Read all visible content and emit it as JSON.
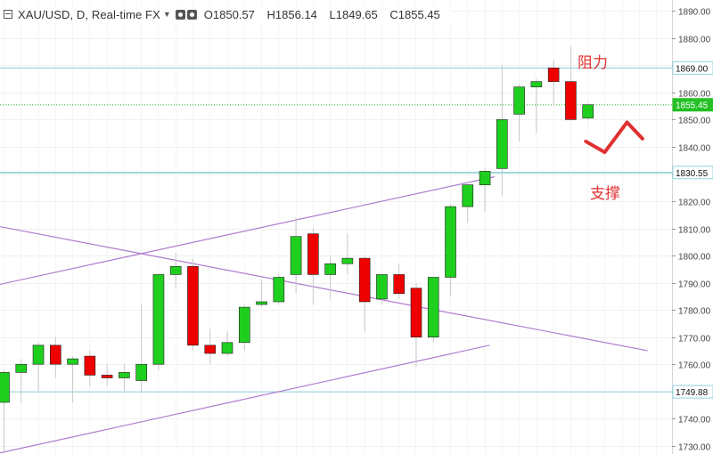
{
  "header": {
    "title": "XAU/USD, D, Real-time FX",
    "open": "O1850.57",
    "high": "H1856.14",
    "low": "L1849.65",
    "close": "C1855.45"
  },
  "annotations": {
    "resistance": "阻力",
    "support": "支撑"
  },
  "price_labels": {
    "resistance": "1869.00",
    "current": "1855.45",
    "support": "1830.55",
    "lower": "1749.88"
  },
  "colors": {
    "up": "#1ecf1e",
    "down": "#ee0000",
    "hline": "#8fd3dc",
    "trend": "#b07ad0",
    "annotation": "#e03030",
    "current": "#22c022"
  },
  "chart_data": {
    "type": "candlestick",
    "ylim": [
      1727,
      1894
    ],
    "y_ticks": [
      1890,
      1880,
      1870,
      1860,
      1850,
      1840,
      1830,
      1820,
      1810,
      1800,
      1790,
      1780,
      1770,
      1760,
      1750,
      1740,
      1730
    ],
    "candles": [
      {
        "o": 1746,
        "h": 1758,
        "l": 1726,
        "c": 1757
      },
      {
        "o": 1757,
        "h": 1762,
        "l": 1746,
        "c": 1760
      },
      {
        "o": 1760,
        "h": 1768,
        "l": 1750,
        "c": 1767
      },
      {
        "o": 1767,
        "h": 1770,
        "l": 1755,
        "c": 1760
      },
      {
        "o": 1760,
        "h": 1763,
        "l": 1746,
        "c": 1762
      },
      {
        "o": 1763,
        "h": 1765,
        "l": 1752,
        "c": 1756
      },
      {
        "o": 1756,
        "h": 1760,
        "l": 1752,
        "c": 1755
      },
      {
        "o": 1755,
        "h": 1760,
        "l": 1750,
        "c": 1757
      },
      {
        "o": 1754,
        "h": 1782,
        "l": 1750,
        "c": 1760
      },
      {
        "o": 1760,
        "h": 1793,
        "l": 1758,
        "c": 1793
      },
      {
        "o": 1793,
        "h": 1801,
        "l": 1788,
        "c": 1796
      },
      {
        "o": 1796,
        "h": 1799,
        "l": 1765,
        "c": 1767
      },
      {
        "o": 1767,
        "h": 1773,
        "l": 1760,
        "c": 1764
      },
      {
        "o": 1764,
        "h": 1772,
        "l": 1763,
        "c": 1768
      },
      {
        "o": 1768,
        "h": 1782,
        "l": 1765,
        "c": 1781
      },
      {
        "o": 1782,
        "h": 1791,
        "l": 1781,
        "c": 1783
      },
      {
        "o": 1783,
        "h": 1793,
        "l": 1782,
        "c": 1792
      },
      {
        "o": 1793,
        "h": 1814,
        "l": 1786,
        "c": 1807
      },
      {
        "o": 1808,
        "h": 1810,
        "l": 1782,
        "c": 1793
      },
      {
        "o": 1793,
        "h": 1800,
        "l": 1784,
        "c": 1797
      },
      {
        "o": 1797,
        "h": 1808,
        "l": 1793,
        "c": 1799
      },
      {
        "o": 1799,
        "h": 1800,
        "l": 1772,
        "c": 1783
      },
      {
        "o": 1784,
        "h": 1793,
        "l": 1782,
        "c": 1793
      },
      {
        "o": 1793,
        "h": 1797,
        "l": 1784,
        "c": 1786
      },
      {
        "o": 1788,
        "h": 1790,
        "l": 1759,
        "c": 1770
      },
      {
        "o": 1770,
        "h": 1792,
        "l": 1768,
        "c": 1792
      },
      {
        "o": 1792,
        "h": 1819,
        "l": 1785,
        "c": 1818
      },
      {
        "o": 1818,
        "h": 1827,
        "l": 1812,
        "c": 1826
      },
      {
        "o": 1826,
        "h": 1832,
        "l": 1816,
        "c": 1831
      },
      {
        "o": 1832,
        "h": 1870,
        "l": 1822,
        "c": 1850
      },
      {
        "o": 1852,
        "h": 1863,
        "l": 1842,
        "c": 1862
      },
      {
        "o": 1862,
        "h": 1865,
        "l": 1845,
        "c": 1864
      },
      {
        "o": 1869,
        "h": 1872,
        "l": 1855,
        "c": 1864
      },
      {
        "o": 1864,
        "h": 1877,
        "l": 1850,
        "c": 1850
      },
      {
        "o": 1850.57,
        "h": 1856.14,
        "l": 1849.65,
        "c": 1855.45
      }
    ],
    "hlines": [
      1869.0,
      1830.55,
      1749.88
    ],
    "current_price": 1855.45,
    "trendlines": [
      {
        "x1": -0.5,
        "y1": 1789,
        "x2": 28.6,
        "y2": 1829
      },
      {
        "x1": -0.5,
        "y1": 1811,
        "x2": 37.5,
        "y2": 1765
      },
      {
        "x1": -0.5,
        "y1": 1727,
        "x2": 28.3,
        "y2": 1767
      }
    ],
    "check_mark": [
      [
        33.9,
        1842
      ],
      [
        35.0,
        1838
      ],
      [
        36.3,
        1849
      ],
      [
        37.2,
        1843
      ]
    ]
  }
}
